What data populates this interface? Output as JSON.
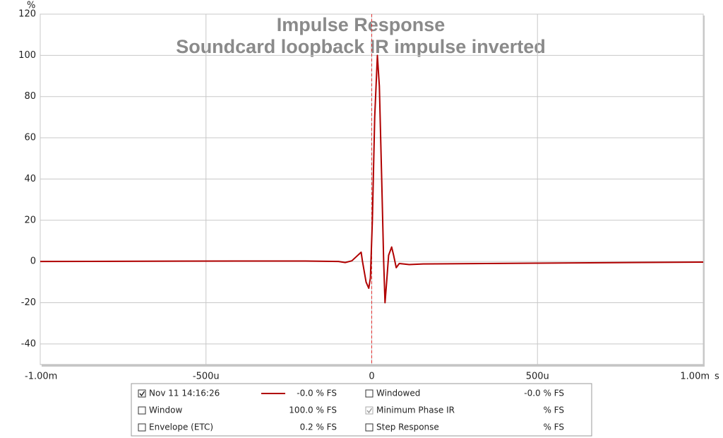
{
  "chart_data": {
    "type": "line",
    "title": "Impulse Response",
    "subtitle": "Soundcard loopback IR impulse inverted",
    "y_unit": "%",
    "x_unit": "s",
    "xlim": [
      -0.001,
      0.001
    ],
    "xticks": [
      {
        "value": -0.001,
        "label": "-1.00m"
      },
      {
        "value": -0.0005,
        "label": "-500u"
      },
      {
        "value": 0,
        "label": "0"
      },
      {
        "value": 0.0005,
        "label": "500u"
      },
      {
        "value": 0.001,
        "label": "1.00m"
      }
    ],
    "ylim": [
      -50,
      120
    ],
    "yticks": [
      -40,
      -20,
      0,
      20,
      40,
      60,
      80,
      100,
      120
    ],
    "grid": true,
    "series": [
      {
        "name": "Nov 11 14:16:26",
        "color": "#b00000",
        "checked": true,
        "readout": "-0.0 % FS",
        "x": [
          -0.001,
          -0.0004,
          -0.0002,
          -0.0001,
          -8e-05,
          -6e-05,
          -3.2e-05,
          -2.8e-05,
          -1.7e-05,
          -9e-06,
          -4e-06,
          2e-06,
          9e-06,
          1.7e-05,
          2.3e-05,
          3e-05,
          3.6e-05,
          4e-05,
          4.5e-05,
          5.1e-05,
          6e-05,
          6.6e-05,
          7.4e-05,
          8.3e-05,
          0.000113,
          0.000155,
          0.000496,
          0.001
        ],
        "values": [
          0,
          0.2,
          0.2,
          0,
          -0.5,
          0.3,
          4.5,
          0,
          -10,
          -13,
          -8,
          20,
          70,
          100,
          85,
          40,
          0,
          -20,
          -10,
          3,
          7,
          3,
          -3,
          -1,
          -1.5,
          -1.2,
          -0.8,
          -0.3
        ]
      }
    ],
    "legend": [
      {
        "label": "Windowed",
        "readout": "-0.0 % FS",
        "color": "#c00000",
        "checked": false
      },
      {
        "label": "Window",
        "readout": "100.0 % FS",
        "color": "#0000b0",
        "checked": false
      },
      {
        "label": "Minimum Phase IR",
        "readout": "% FS",
        "color": "#a0a0a0",
        "checked": true
      },
      {
        "label": "Envelope (ETC)",
        "readout": "0.2 % FS",
        "color": "#800000",
        "checked": false
      },
      {
        "label": "Step Response",
        "readout": "% FS",
        "color": "#700000",
        "checked": false
      }
    ]
  }
}
